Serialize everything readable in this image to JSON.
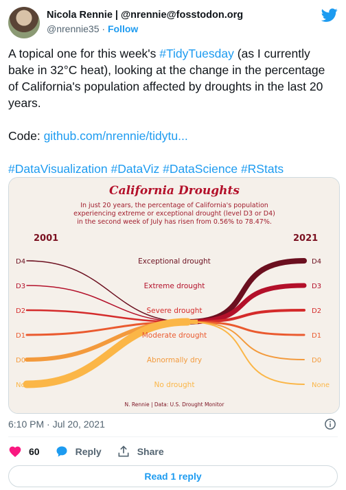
{
  "author": {
    "name": "Nicola Rennie | @nrennie@fosstodon.org",
    "handle": "@nrennie35",
    "separator": "·",
    "follow_label": "Follow"
  },
  "tweet": {
    "text_1": "A topical one for this week's ",
    "hashtag_1": "#TidyTuesday",
    "text_2": " (as I currently bake in 32°C heat), looking at the change in the percentage of California's population affected by droughts in the last 20 years.",
    "code_label": "Code: ",
    "code_link": "github.com/nrennie/tidytu...",
    "hashtags": [
      "#DataVisualization",
      "#DataViz",
      "#DataScience",
      "#RStats"
    ]
  },
  "chart_data": {
    "type": "bump",
    "title": "California Droughts",
    "subtitle_lines": [
      "In just 20 years, the percentage of California's population",
      "experiencing extreme or exceptional drought (level D3 or D4)",
      "in the second week of July has risen from 0.56% to 78.47%."
    ],
    "start_year": "2001",
    "end_year": "2021",
    "caption": "N. Rennie | Data: U.S. Drought Monitor",
    "levels": [
      {
        "code": "D4",
        "name": "Exceptional drought",
        "color": "#6b0f1f",
        "start_rank": 1,
        "end_rank": 1,
        "start_weight": 1.5,
        "end_weight": 8
      },
      {
        "code": "D3",
        "name": "Extreme drought",
        "color": "#b3102a",
        "start_rank": 2,
        "end_rank": 2,
        "start_weight": 1.5,
        "end_weight": 7
      },
      {
        "code": "D2",
        "name": "Severe drought",
        "color": "#d42b2b",
        "start_rank": 3,
        "end_rank": 3,
        "start_weight": 2.5,
        "end_weight": 4
      },
      {
        "code": "D1",
        "name": "Moderate drought",
        "color": "#ea5a2f",
        "start_rank": 4,
        "end_rank": 4,
        "start_weight": 3,
        "end_weight": 3
      },
      {
        "code": "D0",
        "name": "Abnormally dry",
        "color": "#f39a3c",
        "start_rank": 5,
        "end_rank": 5,
        "start_weight": 6,
        "end_weight": 2
      },
      {
        "code": "None",
        "name": "No drought",
        "color": "#fbb647",
        "start_rank": 6,
        "end_rank": 6,
        "start_weight": 11,
        "end_weight": 2
      }
    ]
  },
  "footer": {
    "timestamp": "6:10 PM · Jul 20, 2021",
    "like_count": "60",
    "reply_label": "Reply",
    "share_label": "Share",
    "read_reply_label": "Read 1 reply"
  },
  "colors": {
    "accent": "#1d9bf0",
    "like": "#f91880",
    "chart_title": "#b3102a",
    "chart_bg": "#f5f0ea"
  }
}
